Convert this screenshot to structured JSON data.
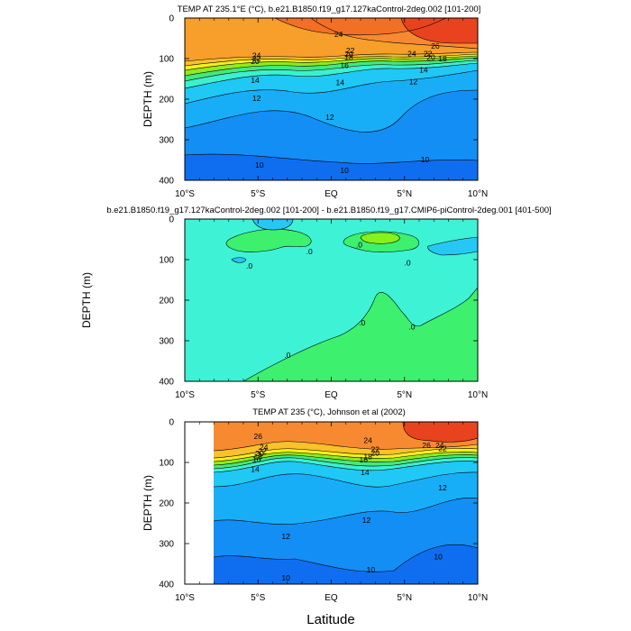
{
  "figure": {
    "xlabel": "Latitude"
  },
  "chart_data": [
    {
      "type": "heatmap",
      "title": "TEMP AT 235.1°E (°C), b.e21.B1850.f19_g17.127kaControl-2deg.002 [101-200]",
      "ylabel": "DEPTH (m)",
      "xlabel": "",
      "xlim": [
        -10,
        10
      ],
      "ylim": [
        400,
        0
      ],
      "x_ticks": [
        "10°S",
        "5°S",
        "EQ",
        "5°N",
        "10°N"
      ],
      "y_ticks": [
        0,
        100,
        200,
        300,
        400
      ],
      "contour_labels": [
        {
          "value": "24",
          "lat": 0.5,
          "depth": 40
        },
        {
          "value": "24",
          "lat": -5.1,
          "depth": 92
        },
        {
          "value": "22",
          "lat": -5.1,
          "depth": 100
        },
        {
          "value": "20",
          "lat": -5.2,
          "depth": 107
        },
        {
          "value": "22",
          "lat": 1.3,
          "depth": 80
        },
        {
          "value": "20",
          "lat": 1.2,
          "depth": 89
        },
        {
          "value": "18",
          "lat": 1.2,
          "depth": 97
        },
        {
          "value": "16",
          "lat": 0.9,
          "depth": 117
        },
        {
          "value": "26",
          "lat": 7.1,
          "depth": 69
        },
        {
          "value": "24",
          "lat": 5.5,
          "depth": 88
        },
        {
          "value": "22",
          "lat": 6.6,
          "depth": 88
        },
        {
          "value": "20",
          "lat": 6.8,
          "depth": 97
        },
        {
          "value": "18",
          "lat": 7.6,
          "depth": 100
        },
        {
          "value": "14",
          "lat": 6.3,
          "depth": 128
        },
        {
          "value": "12",
          "lat": 5.6,
          "depth": 157
        },
        {
          "value": "14",
          "lat": 0.6,
          "depth": 159
        },
        {
          "value": "14",
          "lat": -5.2,
          "depth": 153
        },
        {
          "value": "12",
          "lat": -5.1,
          "depth": 198
        },
        {
          "value": "12",
          "lat": -0.1,
          "depth": 244
        },
        {
          "value": "10",
          "lat": -4.9,
          "depth": 362
        },
        {
          "value": "10",
          "lat": 0.9,
          "depth": 375
        },
        {
          "value": "10",
          "lat": 6.4,
          "depth": 349
        }
      ],
      "colors": {
        "hot": "#e8431e",
        "orange": "#f78a30",
        "mid": "#1fc8f5",
        "deep": "#0f6ef0"
      }
    },
    {
      "type": "heatmap",
      "title": "b.e21.B1850.f19_g17.127kaControl-2deg.002 [101-200] - b.e21.B1850.f19_g17.CMIP6-piControl-2deg.001 [401-500]",
      "ylabel": "DEPTH (m)",
      "xlabel": "",
      "xlim": [
        -10,
        10
      ],
      "ylim": [
        400,
        0
      ],
      "x_ticks": [
        "10°S",
        "5°S",
        "EQ",
        "5°N",
        "10°N"
      ],
      "y_ticks": [
        0,
        100,
        200,
        300,
        400
      ],
      "contour_labels": [
        {
          "value": ".0",
          "lat": -5.6,
          "depth": 115
        },
        {
          "value": ".0",
          "lat": -1.5,
          "depth": 80
        },
        {
          "value": ".0",
          "lat": 1.9,
          "depth": 63
        },
        {
          "value": ".0",
          "lat": 5.2,
          "depth": 108
        },
        {
          "value": ".0",
          "lat": 2.1,
          "depth": 255
        },
        {
          "value": ".0",
          "lat": 5.5,
          "depth": 265
        },
        {
          "value": ".0",
          "lat": -3.0,
          "depth": 335
        }
      ],
      "colors": {
        "background": "#3ef2d6",
        "positive": "#3df06e",
        "max": "#87f11c",
        "negative": "#25c8f4"
      }
    },
    {
      "type": "heatmap",
      "title": "TEMP AT 235 (°C), Johnson et al (2002)",
      "ylabel": "DEPTH (m)",
      "xlabel": "",
      "xlim": [
        -10,
        10
      ],
      "ylim": [
        400,
        0
      ],
      "x_ticks": [
        "10°S",
        "5°S",
        "EQ",
        "5°N",
        "10°N"
      ],
      "y_ticks": [
        0,
        100,
        200,
        300,
        400
      ],
      "contour_labels": [
        {
          "value": "26",
          "lat": -5.0,
          "depth": 35
        },
        {
          "value": "24",
          "lat": -4.6,
          "depth": 62
        },
        {
          "value": "22",
          "lat": -4.7,
          "depth": 72
        },
        {
          "value": "20",
          "lat": -4.9,
          "depth": 78
        },
        {
          "value": "18",
          "lat": -5.0,
          "depth": 85
        },
        {
          "value": "16",
          "lat": -5.1,
          "depth": 92
        },
        {
          "value": "14",
          "lat": -5.2,
          "depth": 117
        },
        {
          "value": "24",
          "lat": 2.5,
          "depth": 45
        },
        {
          "value": "22",
          "lat": 3.0,
          "depth": 68
        },
        {
          "value": "20",
          "lat": 3.0,
          "depth": 77
        },
        {
          "value": "18",
          "lat": 2.5,
          "depth": 85
        },
        {
          "value": "16",
          "lat": 2.2,
          "depth": 93
        },
        {
          "value": "14",
          "lat": 2.3,
          "depth": 124
        },
        {
          "value": "26",
          "lat": 6.5,
          "depth": 58
        },
        {
          "value": "24",
          "lat": 7.4,
          "depth": 58
        },
        {
          "value": "22",
          "lat": 7.6,
          "depth": 65
        },
        {
          "value": "12",
          "lat": 7.6,
          "depth": 162
        },
        {
          "value": "12",
          "lat": 2.4,
          "depth": 242
        },
        {
          "value": "12",
          "lat": -3.1,
          "depth": 282
        },
        {
          "value": "10",
          "lat": 2.7,
          "depth": 364
        },
        {
          "value": "10",
          "lat": -3.1,
          "depth": 384
        },
        {
          "value": "10",
          "lat": 7.3,
          "depth": 332
        }
      ],
      "data_extent": {
        "lat": [
          -8,
          10
        ]
      },
      "colors": {
        "hot": "#e8431e",
        "orange": "#f78a30",
        "mid": "#1fc8f5",
        "deep": "#0f6ef0"
      }
    }
  ]
}
